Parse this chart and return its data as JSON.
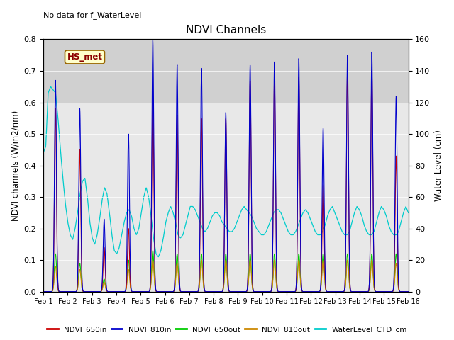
{
  "title": "NDVI Channels",
  "ylabel_left": "NDVI channels (W/m2/nm)",
  "ylabel_right": "Water Level (cm)",
  "top_left_text": "No data for f_WaterLevel",
  "annotation_text": "HS_met",
  "ylim_left": [
    0.0,
    0.8
  ],
  "ylim_right": [
    0,
    160
  ],
  "yticks_left": [
    0.0,
    0.1,
    0.2,
    0.3,
    0.4,
    0.5,
    0.6,
    0.7,
    0.8
  ],
  "yticks_right": [
    0,
    20,
    40,
    60,
    80,
    100,
    120,
    140,
    160
  ],
  "colors": {
    "NDVI_650in": "#cc0000",
    "NDVI_810in": "#0000cc",
    "NDVI_650out": "#00cc00",
    "NDVI_810out": "#cc8800",
    "WaterLevel_CTD_cm": "#00cccc"
  },
  "plot_bg_color": "#e8e8e8",
  "annotation_bg": "#ffffcc",
  "annotation_border": "#996600",
  "peaks_810in": [
    0.67,
    0.58,
    0.23,
    0.5,
    0.8,
    0.72,
    0.71,
    0.57,
    0.72,
    0.73,
    0.74,
    0.52,
    0.75,
    0.76,
    0.62
  ],
  "peaks_650in": [
    0.58,
    0.45,
    0.14,
    0.2,
    0.62,
    0.56,
    0.55,
    0.55,
    0.67,
    0.68,
    0.68,
    0.34,
    0.7,
    0.7,
    0.43
  ],
  "peaks_650out": [
    0.12,
    0.09,
    0.04,
    0.1,
    0.13,
    0.12,
    0.12,
    0.12,
    0.12,
    0.12,
    0.12,
    0.12,
    0.12,
    0.12,
    0.12
  ],
  "peaks_810out": [
    0.08,
    0.07,
    0.03,
    0.07,
    0.1,
    0.09,
    0.1,
    0.1,
    0.1,
    0.1,
    0.1,
    0.1,
    0.1,
    0.1,
    0.09
  ],
  "wl_values": [
    88,
    92,
    126,
    130,
    128,
    126,
    110,
    90,
    72,
    56,
    44,
    36,
    33,
    40,
    50,
    62,
    70,
    72,
    60,
    44,
    34,
    30,
    36,
    46,
    58,
    66,
    62,
    50,
    36,
    26,
    24,
    28,
    36,
    44,
    50,
    52,
    48,
    40,
    36,
    40,
    50,
    60,
    66,
    60,
    48,
    34,
    24,
    22,
    26,
    34,
    44,
    50,
    54,
    50,
    44,
    36,
    34,
    36,
    42,
    48,
    54,
    54,
    52,
    48,
    44,
    40,
    38,
    40,
    44,
    48,
    50,
    50,
    48,
    44,
    42,
    40,
    38,
    38,
    40,
    44,
    48,
    52,
    54,
    52,
    50,
    48,
    44,
    40,
    38,
    36,
    36,
    38,
    42,
    46,
    50,
    52,
    52,
    50,
    46,
    42,
    38,
    36,
    36,
    38,
    42,
    46,
    50,
    52,
    50,
    46,
    42,
    38,
    36,
    36,
    38,
    42,
    48,
    52,
    54,
    50,
    46,
    42,
    38,
    36,
    36,
    38,
    44,
    50,
    54,
    52,
    48,
    42,
    38,
    36,
    36,
    38,
    44,
    50,
    54,
    52,
    48,
    42,
    38,
    36,
    36,
    38,
    44,
    50,
    54,
    50
  ]
}
